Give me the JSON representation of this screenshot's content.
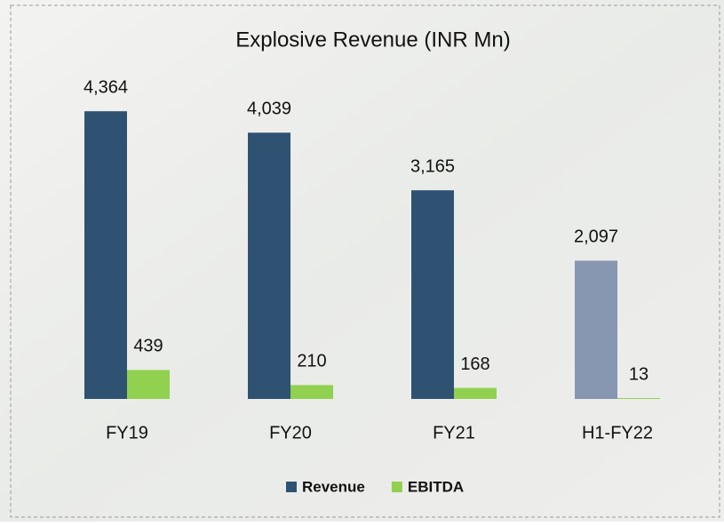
{
  "chart_data": {
    "type": "bar",
    "title": "Explosive Revenue (INR Mn)",
    "categories": [
      "FY19",
      "FY20",
      "FY21",
      "H1-FY22"
    ],
    "series": [
      {
        "name": "Revenue",
        "color": "#2f5272",
        "colors": [
          "#2f5272",
          "#2f5272",
          "#2f5272",
          "#8796b1"
        ],
        "values": [
          4364,
          4039,
          3165,
          2097
        ],
        "value_labels": [
          "4,364",
          "4,039",
          "3,165",
          "2,097"
        ]
      },
      {
        "name": "EBITDA",
        "color": "#92d050",
        "values": [
          439,
          210,
          168,
          13
        ]
      }
    ],
    "ylim": [
      0,
      5000
    ],
    "legend": "bottom"
  }
}
